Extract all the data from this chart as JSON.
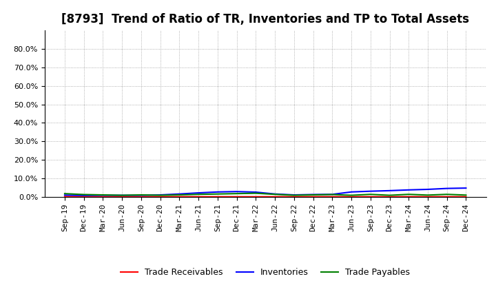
{
  "title": "[8793]  Trend of Ratio of TR, Inventories and TP to Total Assets",
  "x_labels": [
    "Sep-19",
    "Dec-19",
    "Mar-20",
    "Jun-20",
    "Sep-20",
    "Dec-20",
    "Mar-21",
    "Jun-21",
    "Sep-21",
    "Dec-21",
    "Mar-22",
    "Jun-22",
    "Sep-22",
    "Dec-22",
    "Mar-23",
    "Jun-23",
    "Sep-23",
    "Dec-23",
    "Mar-24",
    "Jun-24",
    "Sep-24",
    "Dec-24"
  ],
  "trade_receivables": [
    0.002,
    0.001,
    0.001,
    0.001,
    0.001,
    0.001,
    0.001,
    0.001,
    0.001,
    0.001,
    0.001,
    0.001,
    0.001,
    0.001,
    0.001,
    0.001,
    0.001,
    0.001,
    0.001,
    0.001,
    0.001,
    0.001
  ],
  "inventories": [
    0.01,
    0.008,
    0.009,
    0.009,
    0.009,
    0.011,
    0.016,
    0.022,
    0.027,
    0.029,
    0.026,
    0.016,
    0.011,
    0.013,
    0.014,
    0.027,
    0.031,
    0.034,
    0.038,
    0.041,
    0.046,
    0.048
  ],
  "trade_payables": [
    0.018,
    0.013,
    0.011,
    0.009,
    0.011,
    0.009,
    0.011,
    0.014,
    0.016,
    0.018,
    0.02,
    0.014,
    0.009,
    0.011,
    0.013,
    0.009,
    0.014,
    0.009,
    0.014,
    0.01,
    0.014,
    0.01
  ],
  "tr_color": "#ff0000",
  "inv_color": "#0000ff",
  "tp_color": "#008000",
  "ylim_max": 0.9,
  "yticks": [
    0.0,
    0.1,
    0.2,
    0.3,
    0.4,
    0.5,
    0.6,
    0.7,
    0.8
  ],
  "background_color": "#ffffff",
  "plot_bg_color": "#ffffff",
  "grid_color": "#999999",
  "title_fontsize": 12,
  "tick_fontsize": 8,
  "legend_fontsize": 9
}
